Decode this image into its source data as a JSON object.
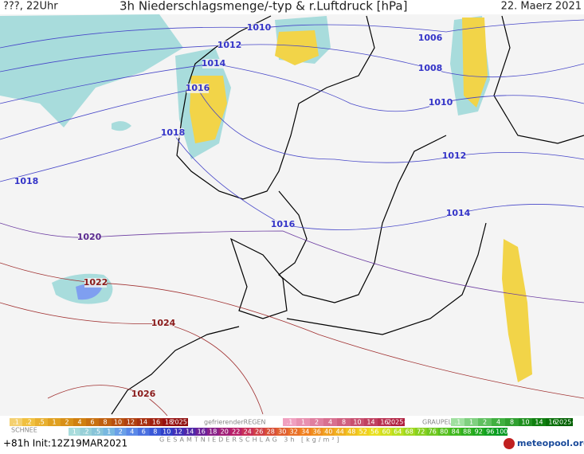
{
  "header": {
    "left": "???, 22Uhr",
    "title": "3h Niederschlagsmenge/-typ & r.Luftdruck [hPa]",
    "date": "22. Maerz 2021"
  },
  "isobar_labels": [
    1010,
    1012,
    1014,
    1016,
    1018,
    1018,
    1020,
    1016,
    1006,
    1008,
    1010,
    1012,
    1014,
    1022,
    1024,
    1026
  ],
  "legend": {
    "rain_scale": [
      ".1",
      ".2",
      ".5",
      "1",
      "2",
      "4",
      "6",
      "8",
      "10",
      "12",
      "14",
      "16",
      "18",
      "2025+"
    ],
    "freezing_rain_title": "gefrierenderREGEN",
    "freezing_rain_scale": [
      ".1",
      "1",
      "2",
      "4",
      "8",
      "10",
      "14",
      "16",
      "2025+"
    ],
    "graupel_title": "GRAUPEL",
    "graupel_scale": [
      ".1",
      "1",
      "2",
      "4",
      "8",
      "10",
      "14",
      "16",
      "2025+"
    ],
    "snow_title": "SCHNEE",
    "snow_scale": [
      "1",
      ".2",
      ".5",
      "1",
      "2",
      "4",
      "6",
      "8",
      "10",
      "12",
      "14",
      "16",
      "18",
      "20",
      "22",
      "24",
      "26",
      "28",
      "30",
      "32",
      "34",
      "36",
      "40",
      "44",
      "48",
      "52",
      "56",
      "60",
      "64",
      "68",
      "72",
      "76",
      "80",
      "84",
      "88",
      "92",
      "96",
      "100"
    ],
    "total_title": "GESAMTNIEDERSCHLAG 3h [kg/m²]"
  },
  "footer": {
    "init": "+81h Init:12Z19MAR2021",
    "brand": "meteopool.org"
  }
}
